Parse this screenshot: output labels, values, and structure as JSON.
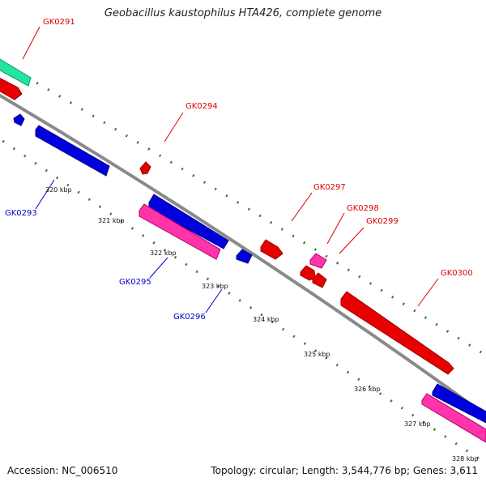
{
  "title": "Geobacillus kaustophilus HTA426, complete genome",
  "footer": {
    "accession": "Accession: NC_006510",
    "summary": "Topology: circular; Length: 3,544,776 bp; Genes: 3,611"
  },
  "colors": {
    "backbone": "#8a8a8a",
    "tick": "#2e7d1f",
    "forward_gene": "#e60000",
    "reverse_gene": "#0000dd",
    "rna_gene": "#ff33aa",
    "teal_gene": "#22e6a0",
    "label_red": "#dd0000",
    "label_blue": "#0000cc"
  },
  "scale_labels": [
    "320 kbp",
    "321 kbp",
    "322 kbp",
    "323 kbp",
    "324 kbp",
    "325 kbp",
    "326 kbp",
    "327 kbp",
    "328 kbp"
  ],
  "gene_labels": [
    {
      "text": "GK0291",
      "color": "red"
    },
    {
      "text": "GK0293",
      "color": "blue"
    },
    {
      "text": "GK0294",
      "color": "red"
    },
    {
      "text": "GK0295",
      "color": "blue"
    },
    {
      "text": "GK0296",
      "color": "blue"
    },
    {
      "text": "GK0297",
      "color": "red"
    },
    {
      "text": "GK0298",
      "color": "red"
    },
    {
      "text": "GK0299",
      "color": "red"
    },
    {
      "text": "GK0300",
      "color": "red"
    }
  ]
}
